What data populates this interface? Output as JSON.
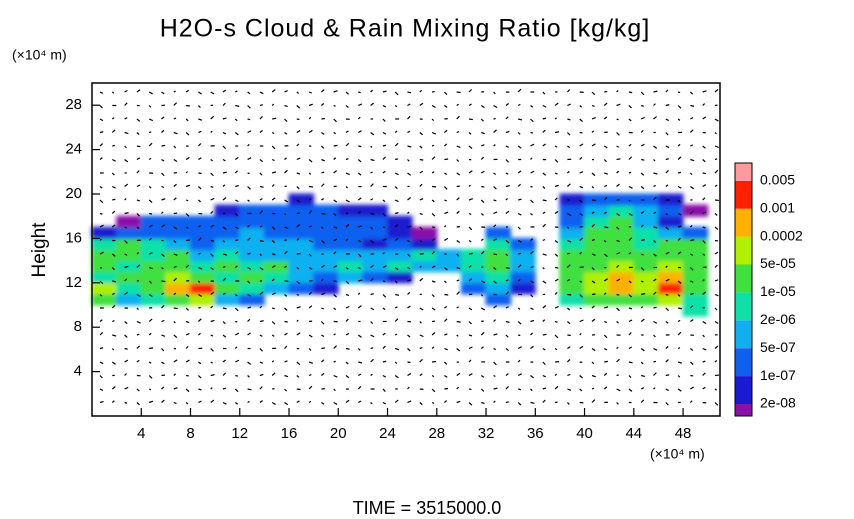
{
  "chart_data": {
    "type": "heatmap",
    "title": "H2O-s Cloud & Rain Mixing Ratio [kg/kg]",
    "y_unit": "(×10⁴ m)",
    "x_unit": "(×10⁴ m)",
    "ylabel": "Height",
    "footer": "TIME = 3515000.0",
    "xlim": [
      0,
      51
    ],
    "ylim": [
      0,
      30
    ],
    "xticks": [
      4,
      8,
      12,
      16,
      20,
      24,
      28,
      32,
      36,
      40,
      44,
      48
    ],
    "yticks": [
      4,
      8,
      12,
      16,
      20,
      24,
      28
    ],
    "colorbar": {
      "levels": [
        {
          "value": 2e-08,
          "label": "2e-08"
        },
        {
          "value": 1e-07,
          "label": "1e-07"
        },
        {
          "value": 5e-07,
          "label": "5e-07"
        },
        {
          "value": 2e-06,
          "label": "2e-06"
        },
        {
          "value": 1e-05,
          "label": "1e-05"
        },
        {
          "value": 5e-05,
          "label": "5e-05"
        },
        0.0002,
        0.001,
        0.005
      ],
      "colors": [
        "#8a10a8",
        "#1a1ad0",
        "#1060f0",
        "#10b0f0",
        "#10e0a8",
        "#40e040",
        "#b0f000",
        "#ffb000",
        "#ff2000",
        "#ff9a9a"
      ]
    },
    "field": {
      "x": [
        1,
        3,
        5,
        7,
        9,
        11,
        13,
        15,
        17,
        19,
        21,
        23,
        25,
        27,
        29,
        31,
        33,
        35,
        37,
        39,
        41,
        43,
        45,
        47,
        49
      ],
      "y": [
        9.5,
        10.5,
        11.5,
        12.5,
        13.5,
        14.5,
        15.5,
        16.5,
        17.5,
        18.5,
        19.5
      ],
      "values": [
        [
          null,
          null,
          null,
          null,
          null,
          null,
          null,
          null,
          null,
          null,
          null,
          null,
          null,
          null,
          null,
          null,
          null,
          null,
          null,
          null,
          null,
          null,
          null,
          null,
          5e-06
        ],
        [
          2e-05,
          1e-06,
          5e-06,
          2e-05,
          0.0001,
          1e-06,
          2e-07,
          null,
          null,
          null,
          null,
          null,
          null,
          null,
          null,
          null,
          2e-07,
          null,
          null,
          5e-06,
          2e-05,
          2e-05,
          2e-05,
          0.0001,
          5e-06
        ],
        [
          0.0001,
          5e-06,
          2e-05,
          0.0005,
          0.002,
          2e-05,
          5e-06,
          1e-06,
          2e-07,
          5e-08,
          null,
          null,
          null,
          null,
          null,
          2e-07,
          1e-06,
          5e-08,
          null,
          2e-05,
          0.0001,
          0.0005,
          0.0001,
          0.002,
          2e-05
        ],
        [
          5e-06,
          2e-05,
          2e-05,
          0.0001,
          2e-05,
          5e-06,
          2e-05,
          5e-06,
          1e-06,
          2e-07,
          1e-06,
          2e-07,
          5e-08,
          null,
          null,
          1e-06,
          5e-06,
          2e-07,
          null,
          2e-05,
          0.0001,
          0.0005,
          0.0001,
          0.0005,
          2e-05
        ],
        [
          2e-05,
          5e-06,
          2e-05,
          2e-05,
          5e-06,
          2e-05,
          5e-06,
          2e-05,
          1e-06,
          1e-06,
          5e-06,
          1e-06,
          5e-06,
          1e-06,
          1e-06,
          5e-06,
          2e-05,
          1e-06,
          null,
          2e-05,
          2e-05,
          0.0001,
          2e-05,
          0.0001,
          2e-05
        ],
        [
          2e-05,
          2e-05,
          5e-06,
          2e-05,
          1e-06,
          5e-06,
          1e-06,
          1e-06,
          1e-06,
          1e-06,
          1e-06,
          1e-06,
          1e-06,
          5e-06,
          1e-06,
          5e-06,
          2e-05,
          1e-06,
          null,
          2e-05,
          2e-05,
          2e-05,
          2e-05,
          2e-05,
          2e-05
        ],
        [
          5e-06,
          2e-05,
          5e-06,
          1e-06,
          2e-07,
          1e-06,
          1e-06,
          1e-06,
          1e-06,
          2e-07,
          2e-07,
          5e-08,
          2e-07,
          5e-08,
          null,
          null,
          5e-06,
          2e-07,
          null,
          5e-06,
          2e-05,
          2e-05,
          5e-06,
          2e-05,
          2e-05
        ],
        [
          5e-08,
          2e-07,
          2e-07,
          2e-07,
          2e-07,
          2e-07,
          1e-06,
          2e-07,
          2e-07,
          2e-07,
          2e-07,
          2e-07,
          5e-08,
          1e-08,
          null,
          null,
          2e-07,
          null,
          null,
          1e-06,
          2e-05,
          2e-05,
          5e-06,
          1e-06,
          2e-07
        ],
        [
          null,
          1e-08,
          2e-07,
          2e-07,
          2e-07,
          2e-07,
          2e-07,
          2e-07,
          2e-07,
          2e-07,
          2e-07,
          2e-07,
          5e-08,
          null,
          null,
          null,
          null,
          null,
          null,
          2e-07,
          5e-06,
          2e-05,
          1e-06,
          5e-08,
          null
        ],
        [
          null,
          null,
          null,
          null,
          null,
          5e-08,
          2e-07,
          2e-07,
          2e-07,
          2e-07,
          5e-08,
          5e-08,
          null,
          null,
          null,
          null,
          null,
          null,
          null,
          2e-07,
          1e-06,
          5e-06,
          1e-06,
          2e-07,
          1e-08
        ],
        [
          null,
          null,
          null,
          null,
          null,
          null,
          null,
          null,
          5e-08,
          null,
          null,
          null,
          null,
          null,
          null,
          null,
          null,
          null,
          null,
          5e-08,
          2e-07,
          2e-07,
          2e-07,
          5e-08,
          null
        ]
      ]
    }
  }
}
